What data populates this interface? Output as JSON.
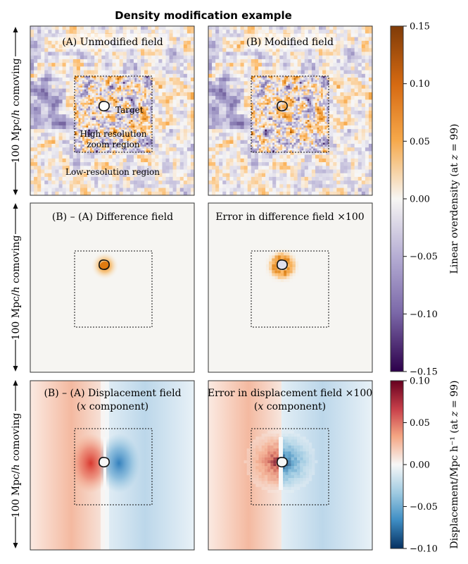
{
  "figure": {
    "title": "Density modification example",
    "row_label": "100 Mpc/h comoving",
    "row_label_parts": [
      "100 Mpc/",
      "h",
      " comoving"
    ]
  },
  "panels": {
    "unmodified": {
      "title": "(A) Unmodified field",
      "annotations": {
        "target": "Target",
        "zoom_line1": "High resolution",
        "zoom_line2": "zoom region",
        "lowres": "Low-resolution region"
      }
    },
    "modified": {
      "title": "(B) Modified field"
    },
    "difference": {
      "title": "(B) – (A) Difference field"
    },
    "difference_error": {
      "title": "Error in difference field ×100"
    },
    "displacement": {
      "title_line1": "(B) – (A) Displacement field",
      "title_line2": "(x component)"
    },
    "displacement_error": {
      "title_line1": "Error in displacement field ×100",
      "title_line2": "(x component)"
    }
  },
  "colorbars": {
    "overdensity": {
      "label": "Linear overdensity (at z = 99)",
      "label_parts": [
        "Linear overdensity (at ",
        "z",
        " = 99)"
      ],
      "range": [
        -0.15,
        0.15
      ],
      "ticks": [
        "0.15",
        "0.10",
        "0.05",
        "0.00",
        "−0.05",
        "−0.10",
        "−0.15"
      ],
      "colors": [
        "#7f3b08",
        "#e08214",
        "#fdb863",
        "#f7f7f7",
        "#b2abd2",
        "#8073ac",
        "#2d004b"
      ]
    },
    "displacement": {
      "label": "Displacement/Mpc h⁻¹ (at z = 99)",
      "label_parts": [
        "Displacement/Mpc h⁻¹ (at ",
        "z",
        " = 99)"
      ],
      "range": [
        -0.1,
        0.1
      ],
      "ticks": [
        "0.10",
        "0.05",
        "0.00",
        "−0.05",
        "−0.10"
      ],
      "colors": [
        "#67001f",
        "#d6604d",
        "#f4a582",
        "#f7f7f7",
        "#92c5de",
        "#4393c3",
        "#053061"
      ]
    }
  }
}
